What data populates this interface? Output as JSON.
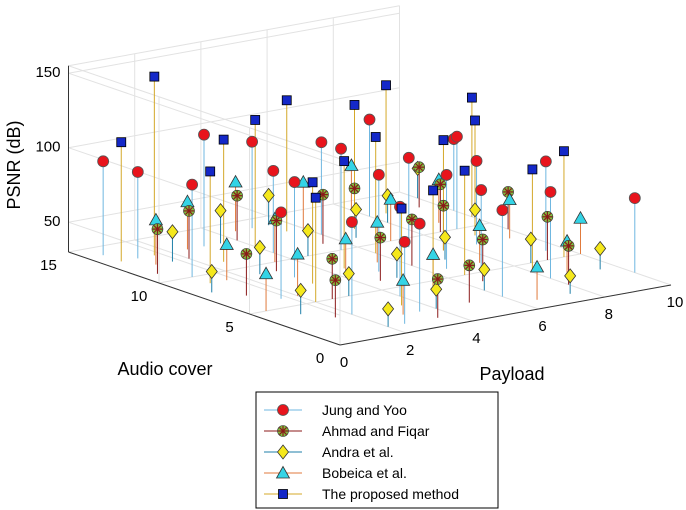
{
  "chart_data": {
    "type": "stem3",
    "title": "",
    "xlabel": "Payload",
    "ylabel": "Audio cover",
    "zlabel": "PSNR (dB)",
    "xlim": [
      0,
      10
    ],
    "ylim": [
      0,
      15
    ],
    "zlim": [
      30,
      155
    ],
    "x_ticks": [
      "0",
      "2",
      "4",
      "6",
      "8",
      "10"
    ],
    "y_ticks": [
      "0",
      "5",
      "10",
      "15"
    ],
    "z_ticks": [
      "50",
      "100",
      "150"
    ],
    "grid": true,
    "legend_position": "bottom",
    "series": [
      {
        "name": "Jung and Yoo",
        "marker": "circle",
        "color": "#e8141c",
        "points": [
          [
            0.5,
            14,
            93
          ],
          [
            1,
            10,
            92
          ],
          [
            1.5,
            6,
            88
          ],
          [
            2,
            3,
            92
          ],
          [
            2.5,
            1,
            85
          ],
          [
            3,
            13,
            105
          ],
          [
            3,
            8,
            94
          ],
          [
            4,
            11,
            85
          ],
          [
            4,
            4,
            90
          ],
          [
            5,
            14,
            88
          ],
          [
            5,
            7,
            95
          ],
          [
            6,
            12,
            92
          ],
          [
            6,
            2,
            88
          ],
          [
            7,
            9,
            90
          ],
          [
            7,
            5,
            85
          ],
          [
            8,
            13,
            95
          ],
          [
            8,
            3,
            88
          ],
          [
            9,
            10,
            92
          ],
          [
            9.5,
            6,
            90
          ],
          [
            10,
            12,
            78
          ],
          [
            10,
            2,
            80
          ],
          [
            1,
            13,
            88
          ],
          [
            3.5,
            2,
            89
          ],
          [
            5.5,
            10,
            98
          ],
          [
            6.5,
            6,
            93
          ],
          [
            8.5,
            8,
            86
          ]
        ]
      },
      {
        "name": "Ahmad and Fiqar",
        "marker": "asterisk",
        "color": "#8b1a1a",
        "points": [
          [
            0.5,
            11,
            60
          ],
          [
            1,
            7,
            58
          ],
          [
            1.5,
            3,
            55
          ],
          [
            2,
            12,
            62
          ],
          [
            2.5,
            5,
            57
          ],
          [
            3,
            9,
            64
          ],
          [
            3.5,
            1,
            56
          ],
          [
            4,
            13,
            60
          ],
          [
            4.5,
            6,
            59
          ],
          [
            5,
            2,
            55
          ],
          [
            5.5,
            11,
            63
          ],
          [
            6,
            7,
            61
          ],
          [
            6.5,
            4,
            58
          ],
          [
            7,
            12,
            57
          ],
          [
            7.5,
            8,
            60
          ],
          [
            8,
            2,
            56
          ],
          [
            8.5,
            10,
            62
          ],
          [
            9,
            5,
            59
          ],
          [
            9.5,
            13,
            57
          ],
          [
            10,
            9,
            55
          ]
        ]
      },
      {
        "name": "Andra et al.",
        "marker": "diamond",
        "color": "#f5e81c",
        "points": [
          [
            0.5,
            8,
            44
          ],
          [
            1,
            4,
            46
          ],
          [
            1.5,
            12,
            50
          ],
          [
            2,
            1,
            42
          ],
          [
            2.5,
            9,
            48
          ],
          [
            3,
            5,
            45
          ],
          [
            3.5,
            13,
            52
          ],
          [
            4,
            2,
            43
          ],
          [
            4.5,
            10,
            47
          ],
          [
            5,
            6,
            46
          ],
          [
            5.5,
            14,
            50
          ],
          [
            6,
            3,
            44
          ],
          [
            6.5,
            11,
            49
          ],
          [
            7,
            7,
            45
          ],
          [
            7.5,
            1,
            42
          ],
          [
            8,
            12,
            48
          ],
          [
            8.5,
            5,
            46
          ],
          [
            9,
            9,
            47
          ],
          [
            9.5,
            3,
            44
          ],
          [
            10,
            14,
            50
          ]
        ]
      },
      {
        "name": "Bobeica et al.",
        "marker": "triangle",
        "color": "#34d4e6",
        "points": [
          [
            0.5,
            5,
            55
          ],
          [
            1,
            12,
            60
          ],
          [
            1.5,
            9,
            54
          ],
          [
            2,
            6,
            58
          ],
          [
            2.5,
            13,
            62
          ],
          [
            3,
            2,
            53
          ],
          [
            3.5,
            10,
            59
          ],
          [
            4,
            7,
            56
          ],
          [
            4.5,
            14,
            63
          ],
          [
            5,
            4,
            54
          ],
          [
            5.5,
            8,
            57
          ],
          [
            6,
            13,
            61
          ],
          [
            6.5,
            1,
            52
          ],
          [
            7,
            10,
            58
          ],
          [
            7.5,
            6,
            55
          ],
          [
            8,
            14,
            60
          ],
          [
            8.5,
            3,
            53
          ],
          [
            9,
            11,
            59
          ],
          [
            9.5,
            8,
            56
          ],
          [
            10,
            5,
            54
          ]
        ]
      },
      {
        "name": "The proposed method",
        "marker": "square",
        "color": "#1428c8",
        "points": [
          [
            0.5,
            13,
            110
          ],
          [
            1,
            9,
            105
          ],
          [
            1.5,
            13,
            150
          ],
          [
            2,
            5,
            100
          ],
          [
            2.5,
            11,
            112
          ],
          [
            3,
            7,
            98
          ],
          [
            3.5,
            3,
            95
          ],
          [
            4,
            12,
            115
          ],
          [
            4.5,
            8,
            102
          ],
          [
            5,
            4,
            97
          ],
          [
            5.5,
            13,
            118
          ],
          [
            6,
            9,
            108
          ],
          [
            6.5,
            5,
            100
          ],
          [
            7,
            12,
            113
          ],
          [
            7.5,
            8,
            104
          ],
          [
            8,
            4,
            99
          ],
          [
            8.5,
            13,
            116
          ],
          [
            9,
            9,
            107
          ],
          [
            9.5,
            5,
            101
          ],
          [
            10,
            11,
            110
          ]
        ]
      }
    ]
  }
}
